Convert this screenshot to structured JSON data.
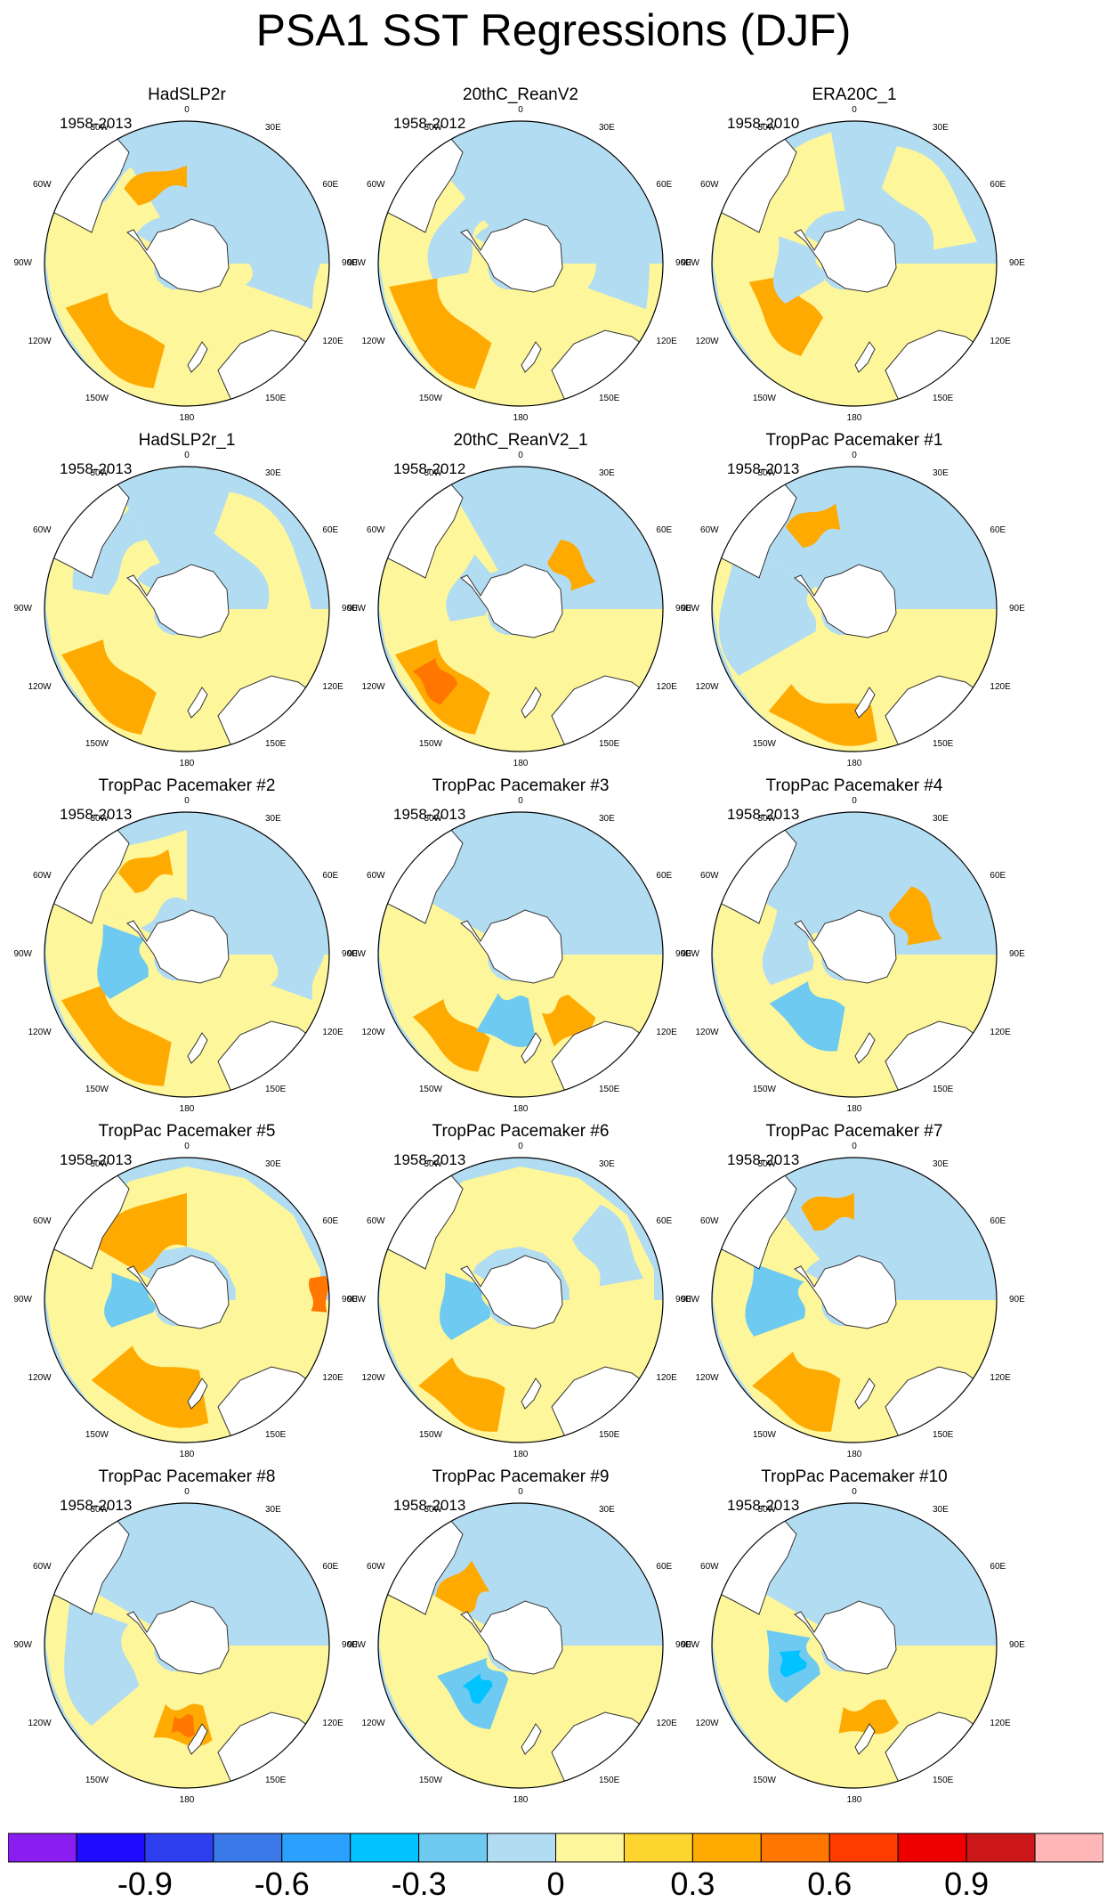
{
  "title": "PSA1 SST Regressions (DJF)",
  "map_labels": {
    "top": "0",
    "bottom": "180",
    "upper_left": "30W",
    "upper_right": "30E",
    "mid_left": "60W",
    "mid_right": "60E",
    "left": "90W",
    "right": "90E",
    "lower_left": "120W",
    "lower_right": "120E",
    "bottom_left": "150W",
    "bottom_right": "150E"
  },
  "panels": [
    {
      "title": "HadSLP2r",
      "years": "1958-2013"
    },
    {
      "title": "20thC_ReanV2",
      "years": "1958-2012"
    },
    {
      "title": "ERA20C_1",
      "years": "1958-2010"
    },
    {
      "title": "HadSLP2r_1",
      "years": "1958-2013"
    },
    {
      "title": "20thC_ReanV2_1",
      "years": "1958-2012"
    },
    {
      "title": "TropPac Pacemaker #1",
      "years": "1958-2013"
    },
    {
      "title": "TropPac Pacemaker #2",
      "years": "1958-2013"
    },
    {
      "title": "TropPac Pacemaker #3",
      "years": "1958-2013"
    },
    {
      "title": "TropPac Pacemaker #4",
      "years": "1958-2013"
    },
    {
      "title": "TropPac Pacemaker #5",
      "years": "1958-2013"
    },
    {
      "title": "TropPac Pacemaker #6",
      "years": "1958-2013"
    },
    {
      "title": "TropPac Pacemaker #7",
      "years": "1958-2013"
    },
    {
      "title": "TropPac Pacemaker #8",
      "years": "1958-2013"
    },
    {
      "title": "TropPac Pacemaker #9",
      "years": "1958-2013"
    },
    {
      "title": "TropPac Pacemaker #10",
      "years": "1958-2013"
    }
  ],
  "colorbar": {
    "colors": [
      "#8a1ef0",
      "#1e0cff",
      "#2e3ff0",
      "#3b78e8",
      "#2aa0ff",
      "#00c3ff",
      "#6ecaf0",
      "#b2dcf2",
      "#fdf69a",
      "#fed52e",
      "#ffaa00",
      "#ff7600",
      "#ff3c00",
      "#ee0000",
      "#cc1818",
      "#ffb6b6"
    ],
    "tick_labels": [
      "-0.9",
      "-0.6",
      "-0.3",
      "0",
      "0.3",
      "0.6",
      "0.9"
    ],
    "tick_values": [
      -0.9,
      -0.6,
      -0.3,
      0,
      0.3,
      0.6,
      0.9
    ],
    "levels": [
      -1.05,
      -0.9,
      -0.75,
      -0.6,
      -0.45,
      -0.3,
      -0.15,
      0,
      0.15,
      0.3,
      0.45,
      0.6,
      0.75,
      0.9,
      1.05
    ]
  }
}
